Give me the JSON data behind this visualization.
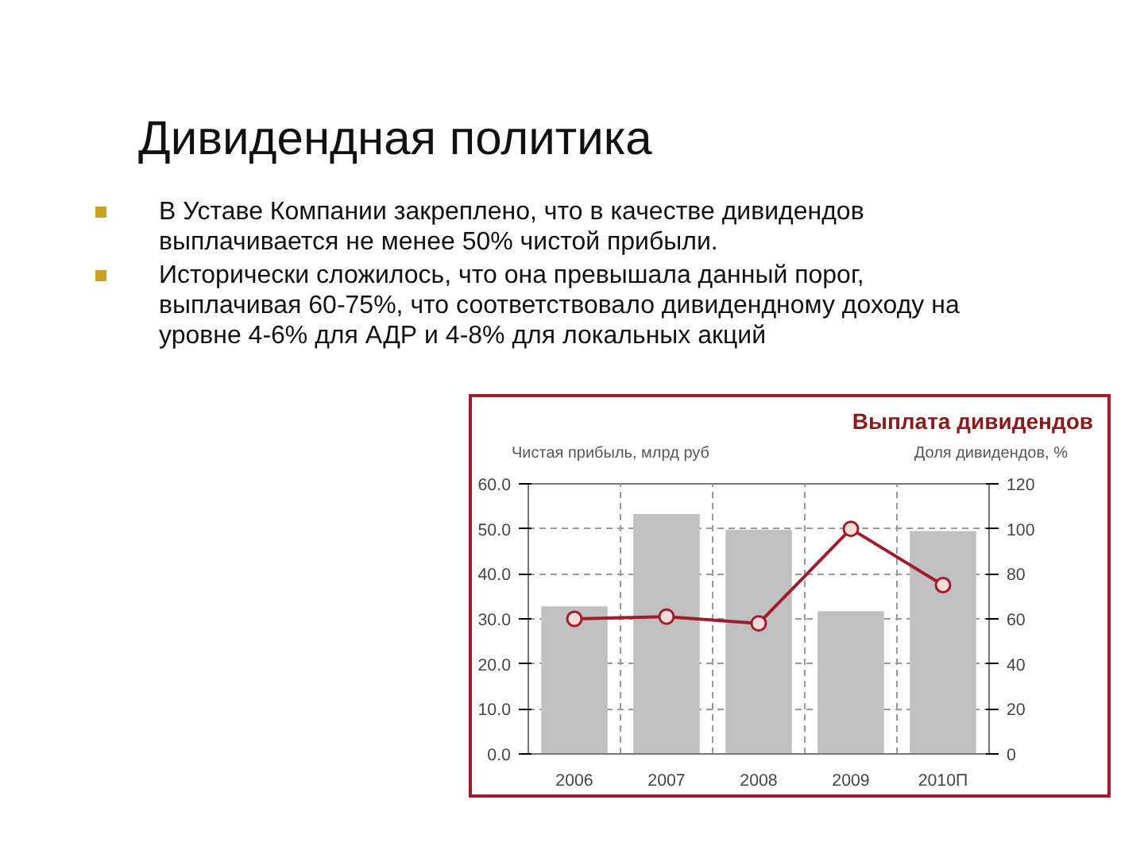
{
  "chart_data": {
    "type": "bar",
    "title": "Выплата дивидендов",
    "subtitle": "Дивидендная политика",
    "annotations": [
      "В Уставе Компании закреплено, что в качестве дивидендов выплачивается не менее 50% чистой прибыли.",
      "Исторически сложилось, что она превышала данный порог, выплачивая 60-75%, что соответствовало дивидендному доходу на уровне 4-6% для АДР и 4-8% для локальных акций"
    ],
    "categories": [
      "2006",
      "2007",
      "2008",
      "2009",
      "2010П"
    ],
    "ylabel": "Чистая прибыль, млрд руб",
    "y2label": "Доля дивидендов, %",
    "series": [
      {
        "color": "#c0c0c0",
        "values": [
          32.8,
          53.3,
          49.8,
          31.7,
          49.5
        ]
      },
      {
        "type": "line",
        "axis": "y2",
        "color": "#a01c2c",
        "values": [
          60,
          61,
          58,
          100,
          75
        ]
      }
    ],
    "ylim": [
      0,
      60
    ],
    "yticks": [
      {
        "value": 0,
        "label": "0.0"
      },
      {
        "value": 10,
        "label": "10.0"
      },
      {
        "value": 20,
        "label": "20.0"
      },
      {
        "value": 30,
        "label": "30.0"
      },
      {
        "value": 40,
        "label": "40.0"
      },
      {
        "value": 50,
        "label": "50.0"
      },
      {
        "value": 60,
        "label": "60.0"
      }
    ],
    "y2lim": [
      0,
      120
    ],
    "y2ticks": [
      0,
      20,
      40,
      60,
      80,
      100,
      120
    ],
    "grid": true,
    "marker": "circle",
    "line_style": "solid"
  }
}
